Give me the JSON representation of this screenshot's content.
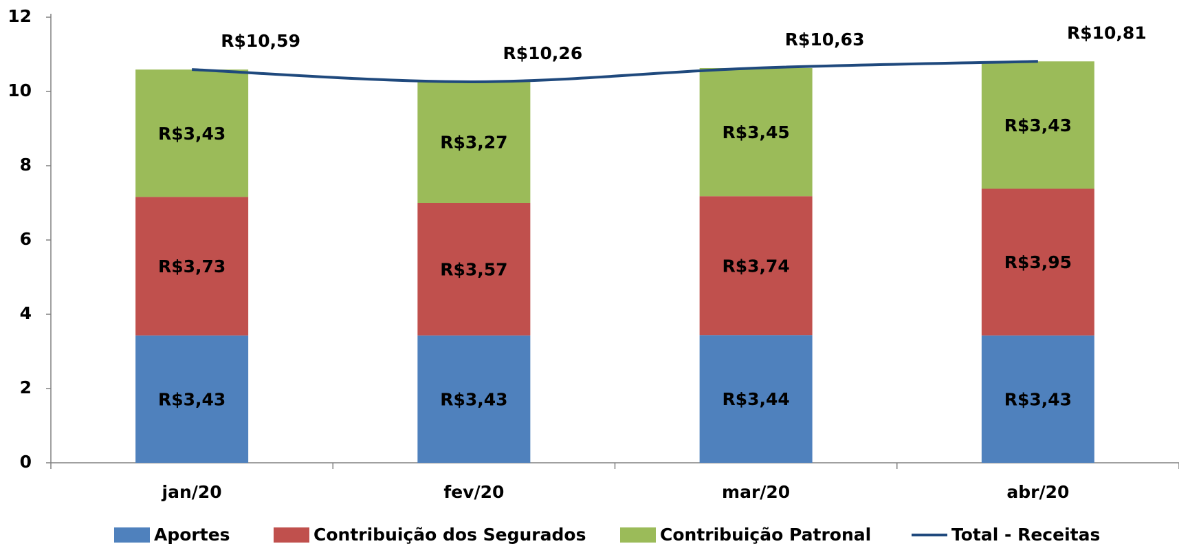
{
  "chart_data": {
    "type": "bar",
    "categories": [
      "jan/20",
      "fev/20",
      "mar/20",
      "abr/20"
    ],
    "series": [
      {
        "name": "Aportes",
        "color": "#4f81bd",
        "values": [
          3.43,
          3.43,
          3.44,
          3.43
        ],
        "value_labels": [
          "R$3,43",
          "R$3,43",
          "R$3,44",
          "R$3,43"
        ]
      },
      {
        "name": "Contribuição dos Segurados",
        "color": "#c0504d",
        "values": [
          3.73,
          3.57,
          3.74,
          3.95
        ],
        "value_labels": [
          "R$3,73",
          "R$3,57",
          "R$3,74",
          "R$3,95"
        ]
      },
      {
        "name": "Contribuição Patronal",
        "color": "#9bbb59",
        "values": [
          3.43,
          3.27,
          3.45,
          3.43
        ],
        "value_labels": [
          "R$3,43",
          "R$3,27",
          "R$3,45",
          "R$3,43"
        ]
      },
      {
        "name": "Total - Receitas",
        "type": "line",
        "color": "#1f497d",
        "values": [
          10.59,
          10.26,
          10.63,
          10.81
        ],
        "value_labels": [
          "R$10,59",
          "R$10,26",
          "R$10,63",
          "R$10,81"
        ]
      }
    ],
    "ylim": [
      0,
      12
    ],
    "yticks": [
      0,
      2,
      4,
      6,
      8,
      10,
      12
    ],
    "grid": false,
    "legend": "bottom"
  }
}
